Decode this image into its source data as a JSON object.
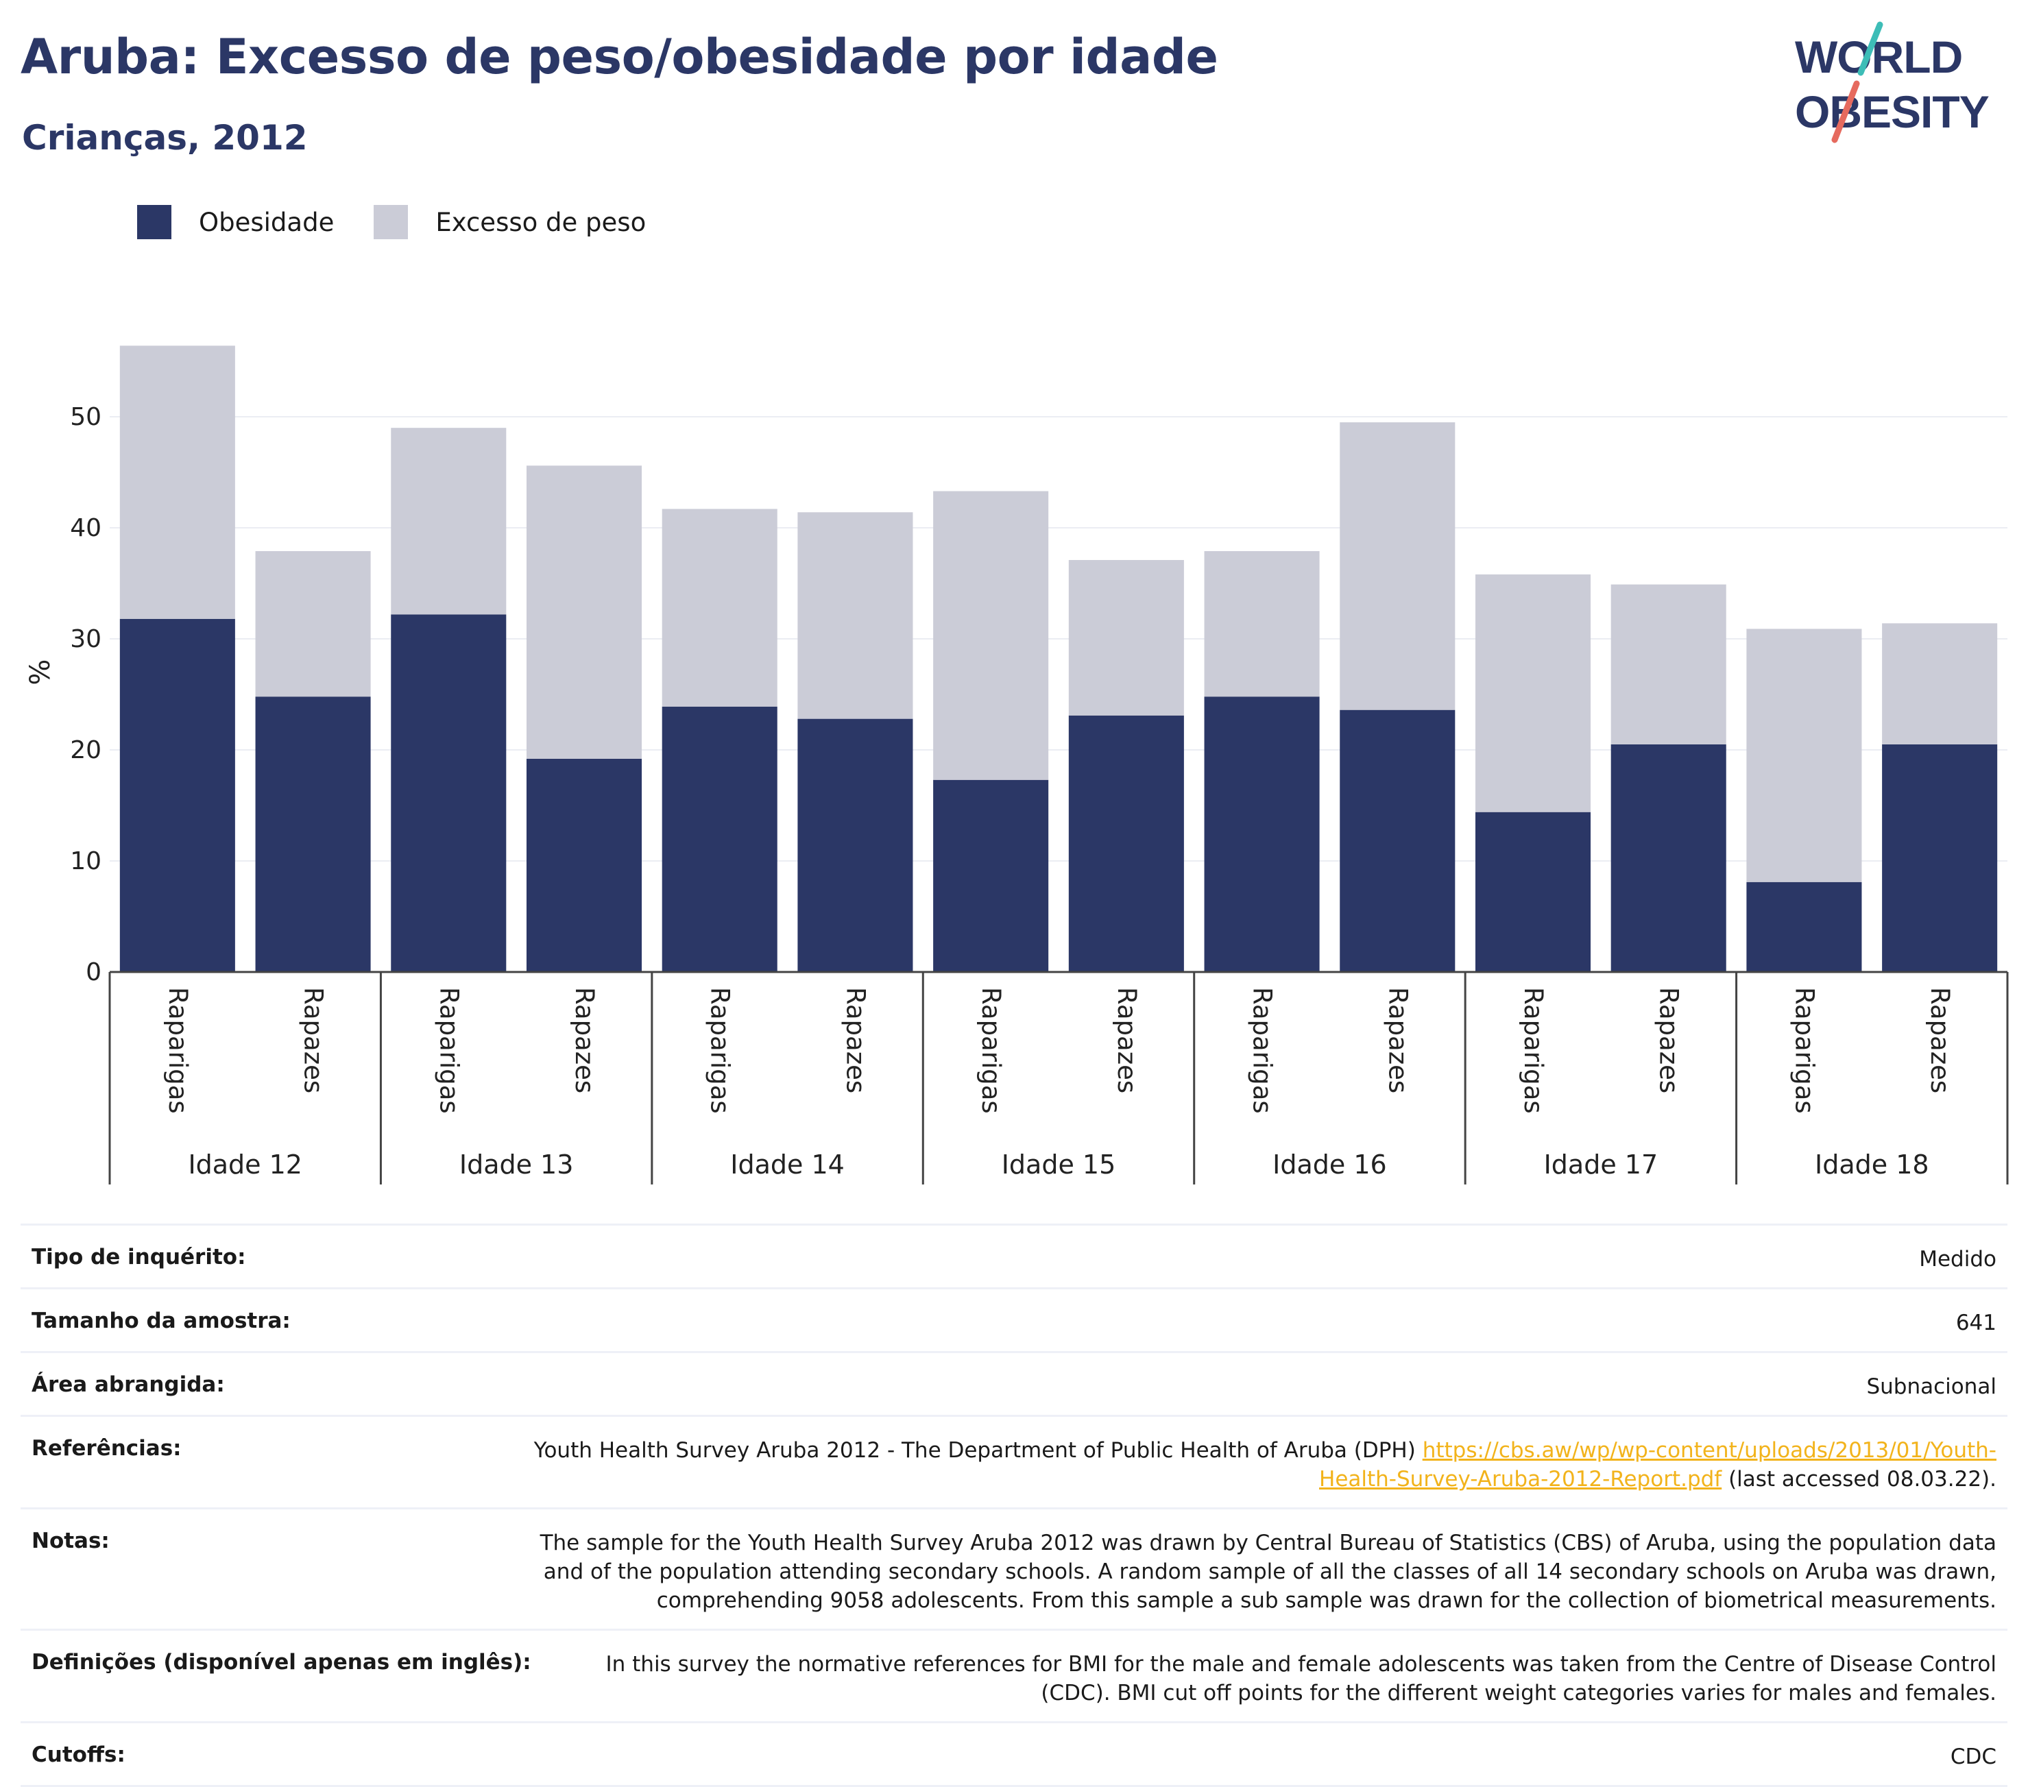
{
  "header": {
    "title": "Aruba: Excesso de peso/obesidade por idade",
    "subtitle": "Crianças, 2012"
  },
  "logo": {
    "line1": "WORLD",
    "line2": "OBESITY"
  },
  "legend": [
    {
      "label": "Obesidade",
      "color": "#2b3766"
    },
    {
      "label": "Excesso de peso",
      "color": "#cbccd7"
    }
  ],
  "chart_data": {
    "type": "bar",
    "stacked": true,
    "ylabel": "%",
    "ylim": [
      0,
      57
    ],
    "yticks": [
      0,
      10,
      20,
      30,
      40,
      50
    ],
    "grid": true,
    "legend_position": "top-left",
    "groups": [
      "Idade 12",
      "Idade 13",
      "Idade 14",
      "Idade 15",
      "Idade 16",
      "Idade 17",
      "Idade 18"
    ],
    "subcategories": [
      "Raparigas",
      "Rapazes"
    ],
    "series": [
      {
        "name": "Obesidade",
        "color": "#2b3766",
        "values": [
          31.8,
          24.8,
          32.2,
          19.2,
          23.9,
          22.8,
          17.3,
          23.1,
          24.8,
          23.6,
          14.4,
          20.5,
          8.1,
          20.5
        ]
      },
      {
        "name": "Excesso de peso",
        "color": "#cbccd7",
        "values": [
          24.6,
          13.1,
          16.8,
          26.4,
          17.8,
          18.6,
          26.0,
          14.0,
          13.1,
          25.9,
          21.4,
          14.4,
          22.8,
          10.9
        ]
      }
    ]
  },
  "info_table": [
    {
      "label": "Tipo de inquérito:",
      "value": "Medido"
    },
    {
      "label": "Tamanho da amostra:",
      "value": "641"
    },
    {
      "label": "Área abrangida:",
      "value": "Subnacional"
    },
    {
      "label": "Referências:",
      "value_pre": "Youth Health Survey Aruba 2012 - The Department of Public Health of Aruba (DPH) ",
      "link": "https://cbs.aw/wp/wp-content/uploads/2013/01/Youth-Health-Survey-Aruba-2012-Report.pdf",
      "value_post": " (last accessed 08.03.22)."
    },
    {
      "label": "Notas:",
      "value": "The sample for the Youth Health Survey Aruba 2012 was drawn by Central Bureau of Statistics (CBS) of Aruba, using the population data and of the population attending secondary schools. A random sample of all the classes of all 14 secondary schools on Aruba was drawn, comprehending 9058 adolescents. From this sample a sub sample was drawn for the collection of biometrical measurements."
    },
    {
      "label": "Definições (disponível apenas em inglês):",
      "value": "In this survey the normative references for BMI for the male and female adolescents was taken from the Centre of Disease Control (CDC). BMI cut off points for the different weight categories varies for males and females."
    },
    {
      "label": "Cutoffs:",
      "value": "CDC"
    }
  ]
}
